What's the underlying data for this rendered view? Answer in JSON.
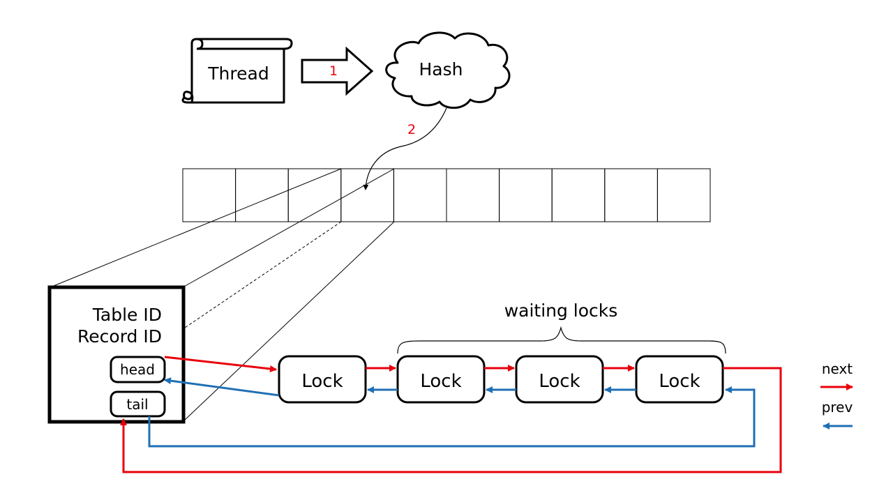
{
  "nodes": {
    "thread": "Thread",
    "hash": "Hash",
    "table_id": "Table ID",
    "record_id": "Record ID",
    "head": "head",
    "tail": "tail",
    "locks": [
      "Lock",
      "Lock",
      "Lock",
      "Lock"
    ],
    "waiting_locks": "waiting locks"
  },
  "steps": {
    "step1": "1",
    "step2": "2"
  },
  "legend": {
    "next": "next",
    "prev": "prev"
  },
  "colors": {
    "next": "#e8000b",
    "prev": "#1f6fb5",
    "outline": "#000000"
  },
  "hash_table": {
    "slot_count": 10,
    "selected_slot": 4
  }
}
